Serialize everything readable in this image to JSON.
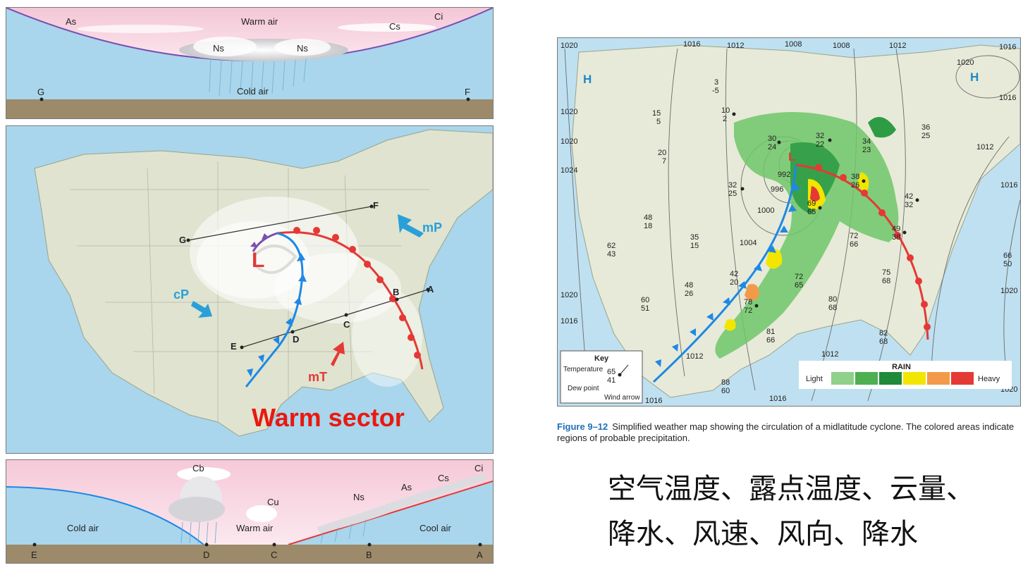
{
  "top_section": {
    "labels": {
      "as": "As",
      "warm_air": "Warm air",
      "cs": "Cs",
      "ci": "Ci",
      "ns_left": "Ns",
      "ns_right": "Ns",
      "cold_air": "Cold air",
      "g": "G",
      "f": "F"
    }
  },
  "middle_map": {
    "points": {
      "g": "G",
      "f": "F",
      "a": "A",
      "b": "B",
      "c": "C",
      "d": "D",
      "e": "E"
    },
    "low": "L",
    "air_masses": {
      "mp": "mP",
      "cp": "cP",
      "mt": "mT"
    },
    "annotation": "Warm sector"
  },
  "bottom_section": {
    "labels": {
      "cb": "Cb",
      "cu": "Cu",
      "ns": "Ns",
      "as": "As",
      "cs": "Cs",
      "ci": "Ci",
      "cold_air": "Cold air",
      "warm_air": "Warm air",
      "cool_air": "Cool air",
      "e": "E",
      "d": "D",
      "c": "C",
      "b": "B",
      "a": "A"
    }
  },
  "weather_map": {
    "highs": [
      "H",
      "H"
    ],
    "low": "L",
    "isobars": [
      "1020",
      "1016",
      "1012",
      "1008",
      "1008",
      "1012",
      "1016",
      "1020",
      "1016",
      "1020",
      "1020",
      "1024",
      "1012",
      "1016",
      "1020",
      "1020",
      "1016",
      "1012",
      "1016",
      "1016",
      "1012",
      "1020",
      "1004",
      "1000",
      "996",
      "992"
    ],
    "stations": [
      {
        "t": "3",
        "d": "-5"
      },
      {
        "t": "10",
        "d": "2"
      },
      {
        "t": "15",
        "d": "5"
      },
      {
        "t": "20",
        "d": "7"
      },
      {
        "t": "30",
        "d": "24"
      },
      {
        "t": "32",
        "d": "22"
      },
      {
        "t": "34",
        "d": "23"
      },
      {
        "t": "36",
        "d": "25"
      },
      {
        "t": "32",
        "d": "25"
      },
      {
        "t": "38",
        "d": "26"
      },
      {
        "t": "69",
        "d": "65"
      },
      {
        "t": "42",
        "d": "32"
      },
      {
        "t": "48",
        "d": "18"
      },
      {
        "t": "62",
        "d": "43"
      },
      {
        "t": "35",
        "d": "15"
      },
      {
        "t": "49",
        "d": "38"
      },
      {
        "t": "72",
        "d": "66"
      },
      {
        "t": "42",
        "d": "20"
      },
      {
        "t": "72",
        "d": "65"
      },
      {
        "t": "75",
        "d": "68"
      },
      {
        "t": "66",
        "d": "50"
      },
      {
        "t": "48",
        "d": "26"
      },
      {
        "t": "60",
        "d": "51"
      },
      {
        "t": "78",
        "d": "72"
      },
      {
        "t": "80",
        "d": "68"
      },
      {
        "t": "81",
        "d": "66"
      },
      {
        "t": "82",
        "d": "68"
      },
      {
        "t": "88",
        "d": "60"
      }
    ],
    "key": {
      "title": "Key",
      "temperature": "Temperature",
      "dew_point": "Dew point",
      "wind_arrow": "Wind arrow",
      "temp_value": "65",
      "dew_value": "41"
    },
    "rain_legend": {
      "title": "RAIN",
      "light": "Light",
      "heavy": "Heavy",
      "colors": [
        "#8fd08a",
        "#4caf50",
        "#1f8a3a",
        "#f2e600",
        "#f39a4a",
        "#e53935"
      ]
    }
  },
  "caption": {
    "figure": "Figure 9–12",
    "text": "Simplified weather map showing the circulation of a midlatitude cyclone. The colored areas indicate regions of probable precipitation."
  },
  "notes": {
    "line1": "空气温度、露点温度、云量、",
    "line2": "降水、风速、风向、降水"
  },
  "colors": {
    "warm_front": "#e53935",
    "cold_front": "#1e88e5",
    "air_mass_blue": "#2a9fd8",
    "air_mass_red": "#e53935",
    "low_red": "#e53935",
    "high_blue": "#1e88c8",
    "warm_sector": "#e8190f",
    "sky": "#a9d6ec",
    "ground": "#9c8a6a"
  }
}
